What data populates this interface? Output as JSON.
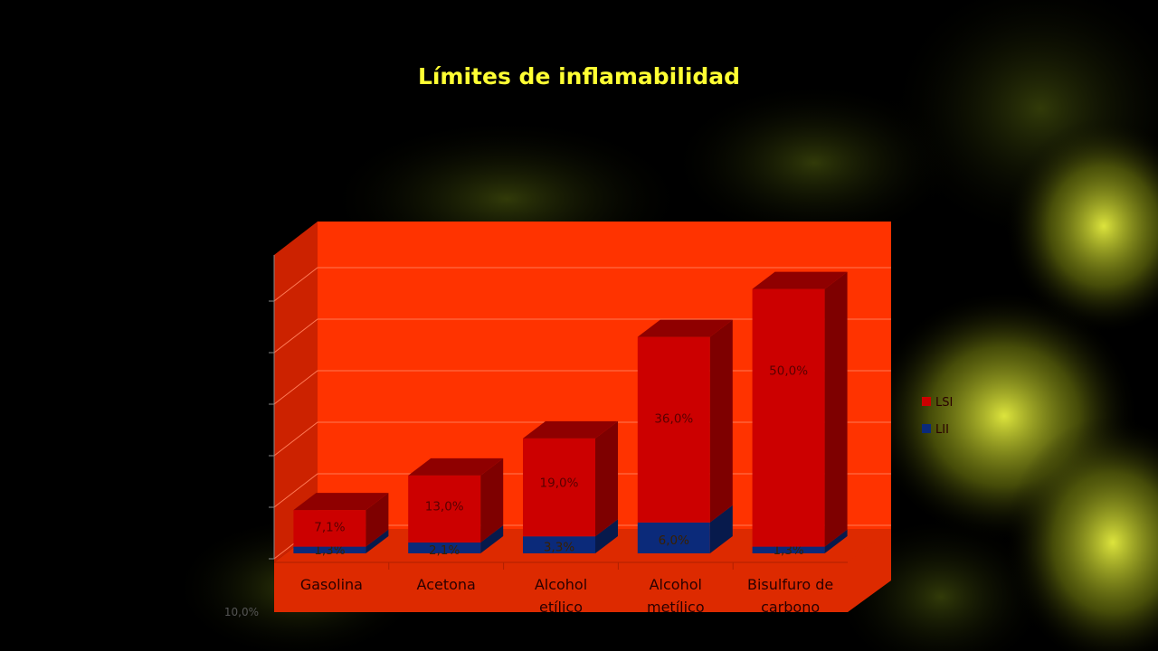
{
  "slide": {
    "title": "Límites de inflamabilidad"
  },
  "chart_data": {
    "type": "bar",
    "stacked": true,
    "three_d": true,
    "title": "Límites de inflamabilidad",
    "categories": [
      "Gasolina",
      "Acetona",
      "Alcohol etílico",
      "Alcohol metílico",
      "Bisulfuro de carbono"
    ],
    "category_lines": [
      [
        "Gasolina"
      ],
      [
        "Acetona"
      ],
      [
        "Alcohol",
        "etílico"
      ],
      [
        "Alcohol",
        "metílico"
      ],
      [
        "Bisulfuro de",
        "carbono"
      ]
    ],
    "series": [
      {
        "name": "LII",
        "values": [
          1.3,
          2.1,
          3.3,
          6.0,
          1.3
        ],
        "labels": [
          "1,3%",
          "2,1%",
          "3,3%",
          "6,0%",
          "1,3%"
        ],
        "color": "#0b2a7a"
      },
      {
        "name": "LSI",
        "values": [
          7.1,
          13.0,
          19.0,
          36.0,
          50.0
        ],
        "labels": [
          "7,1%",
          "13,0%",
          "19,0%",
          "36,0%",
          "50,0%"
        ],
        "color": "#cc0000"
      }
    ],
    "y_axis_visible_label": "10,0%",
    "legend": {
      "position": "right",
      "order": [
        "LSI",
        "LII"
      ]
    },
    "colors": {
      "wall": "#ff3300",
      "side_wall": "#cc2200",
      "floor": "#dd2a00",
      "gridline": "#ff7a55"
    }
  }
}
